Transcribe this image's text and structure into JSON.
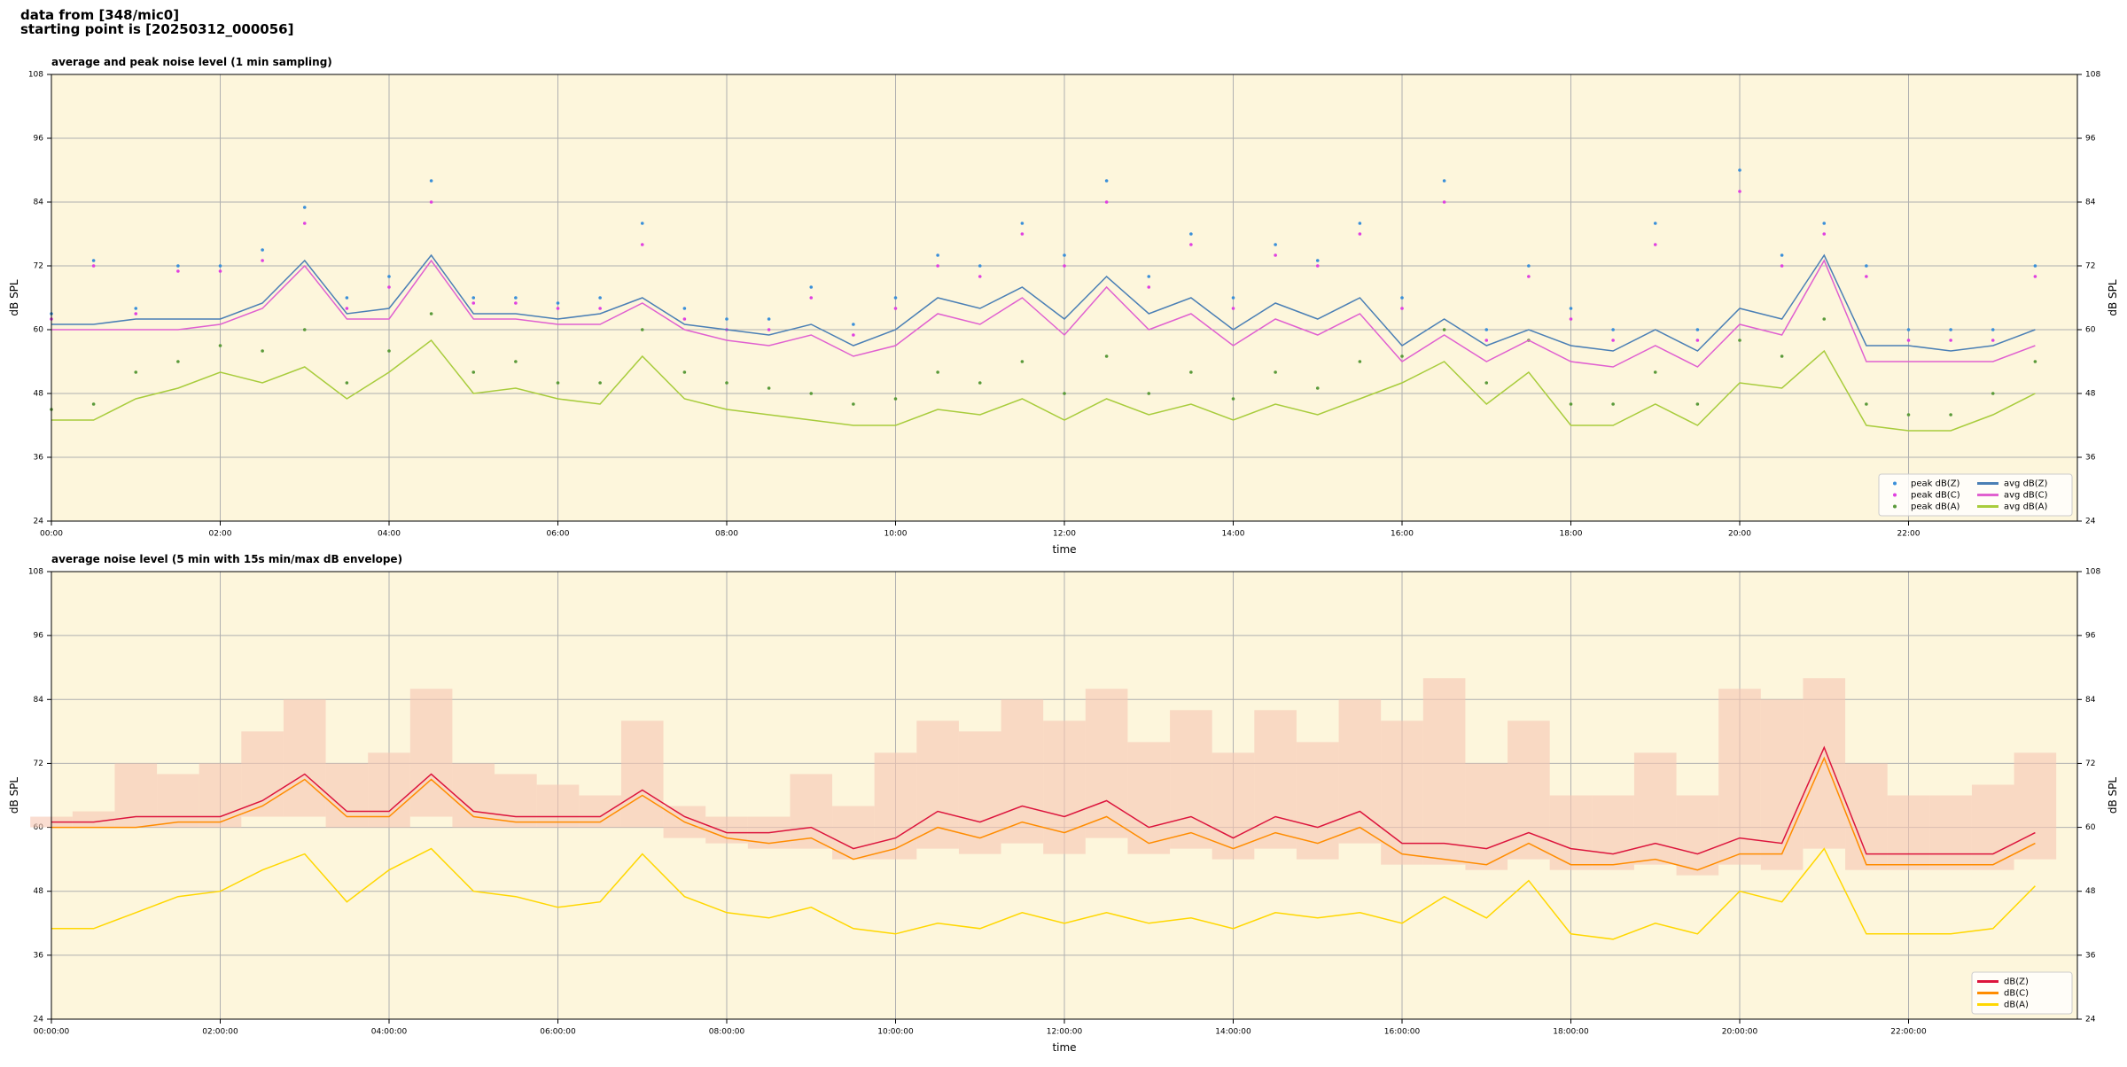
{
  "page": {
    "lines": [
      "data from [348/mic0]",
      "starting point is [20250312_000056]"
    ]
  },
  "chart_data": [
    {
      "type": "line",
      "title": "average and peak noise level (1 min sampling)",
      "xlabel": "time",
      "ylabel": "dB SPL",
      "x": [
        "00:00",
        "00:30",
        "01:00",
        "01:30",
        "02:00",
        "02:30",
        "03:00",
        "03:30",
        "04:00",
        "04:30",
        "05:00",
        "05:30",
        "06:00",
        "06:30",
        "07:00",
        "07:30",
        "08:00",
        "08:30",
        "09:00",
        "09:30",
        "10:00",
        "10:30",
        "11:00",
        "11:30",
        "12:00",
        "12:30",
        "13:00",
        "13:30",
        "14:00",
        "14:30",
        "15:00",
        "15:30",
        "16:00",
        "16:30",
        "17:00",
        "17:30",
        "18:00",
        "18:30",
        "19:00",
        "19:30",
        "20:00",
        "20:30",
        "21:00",
        "21:30",
        "22:00",
        "22:30",
        "23:00",
        "23:30"
      ],
      "xlim": [
        "00:00",
        "24:00"
      ],
      "xticks": [
        "00:00",
        "02:00",
        "04:00",
        "06:00",
        "08:00",
        "10:00",
        "12:00",
        "14:00",
        "16:00",
        "18:00",
        "20:00",
        "22:00"
      ],
      "ylim": [
        24,
        108
      ],
      "yticks": [
        24,
        36,
        48,
        60,
        72,
        84,
        96,
        108
      ],
      "grid": true,
      "background": "#fdf6dc",
      "legend": "lower right",
      "legend_columns": 2,
      "series": [
        {
          "name": "peak dB(Z)",
          "type": "scatter",
          "color": "#3a8fd9",
          "values": [
            63,
            73,
            64,
            72,
            72,
            75,
            83,
            66,
            70,
            88,
            66,
            66,
            65,
            66,
            80,
            64,
            62,
            62,
            68,
            61,
            66,
            74,
            72,
            80,
            74,
            88,
            70,
            78,
            66,
            76,
            73,
            80,
            66,
            88,
            60,
            72,
            64,
            60,
            80,
            60,
            90,
            74,
            80,
            72,
            60,
            60,
            60,
            72
          ]
        },
        {
          "name": "peak dB(C)",
          "type": "scatter",
          "color": "#e040e0",
          "values": [
            62,
            72,
            63,
            71,
            71,
            73,
            80,
            64,
            68,
            84,
            65,
            65,
            64,
            64,
            76,
            62,
            60,
            60,
            66,
            59,
            64,
            72,
            70,
            78,
            72,
            84,
            68,
            76,
            64,
            74,
            72,
            78,
            64,
            84,
            58,
            70,
            62,
            58,
            76,
            58,
            86,
            72,
            78,
            70,
            58,
            58,
            58,
            70
          ]
        },
        {
          "name": "peak dB(A)",
          "type": "scatter",
          "color": "#5a9a3a",
          "values": [
            45,
            46,
            52,
            54,
            57,
            56,
            60,
            50,
            56,
            63,
            52,
            54,
            50,
            50,
            60,
            52,
            50,
            49,
            48,
            46,
            47,
            52,
            50,
            54,
            48,
            55,
            48,
            52,
            47,
            52,
            49,
            54,
            55,
            60,
            50,
            58,
            46,
            46,
            52,
            46,
            58,
            55,
            62,
            46,
            44,
            44,
            48,
            54
          ]
        },
        {
          "name": "avg dB(Z)",
          "type": "line",
          "color": "#4a7fb5",
          "values": [
            61,
            61,
            62,
            62,
            62,
            65,
            73,
            63,
            64,
            74,
            63,
            63,
            62,
            63,
            66,
            61,
            60,
            59,
            61,
            57,
            60,
            66,
            64,
            68,
            62,
            70,
            63,
            66,
            60,
            65,
            62,
            66,
            57,
            62,
            57,
            60,
            57,
            56,
            60,
            56,
            64,
            62,
            74,
            57,
            57,
            56,
            57,
            60
          ]
        },
        {
          "name": "avg dB(C)",
          "type": "line",
          "color": "#e060d0",
          "values": [
            60,
            60,
            60,
            60,
            61,
            64,
            72,
            62,
            62,
            73,
            62,
            62,
            61,
            61,
            65,
            60,
            58,
            57,
            59,
            55,
            57,
            63,
            61,
            66,
            59,
            68,
            60,
            63,
            57,
            62,
            59,
            63,
            54,
            59,
            54,
            58,
            54,
            53,
            57,
            53,
            61,
            59,
            73,
            54,
            54,
            54,
            54,
            57
          ]
        },
        {
          "name": "avg dB(A)",
          "type": "line",
          "color": "#a8cc3c",
          "values": [
            43,
            43,
            47,
            49,
            52,
            50,
            53,
            47,
            52,
            58,
            48,
            49,
            47,
            46,
            55,
            47,
            45,
            44,
            43,
            42,
            42,
            45,
            44,
            47,
            43,
            47,
            44,
            46,
            43,
            46,
            44,
            47,
            50,
            54,
            46,
            52,
            42,
            42,
            46,
            42,
            50,
            49,
            56,
            42,
            41,
            41,
            44,
            48
          ]
        }
      ]
    },
    {
      "type": "line",
      "title": "average noise level (5 min with 15s min/max dB envelope)",
      "xlabel": "time",
      "ylabel": "dB SPL",
      "x": [
        "00:00:00",
        "00:30:00",
        "01:00:00",
        "01:30:00",
        "02:00:00",
        "02:30:00",
        "03:00:00",
        "03:30:00",
        "04:00:00",
        "04:30:00",
        "05:00:00",
        "05:30:00",
        "06:00:00",
        "06:30:00",
        "07:00:00",
        "07:30:00",
        "08:00:00",
        "08:30:00",
        "09:00:00",
        "09:30:00",
        "10:00:00",
        "10:30:00",
        "11:00:00",
        "11:30:00",
        "12:00:00",
        "12:30:00",
        "13:00:00",
        "13:30:00",
        "14:00:00",
        "14:30:00",
        "15:00:00",
        "15:30:00",
        "16:00:00",
        "16:30:00",
        "17:00:00",
        "17:30:00",
        "18:00:00",
        "18:30:00",
        "19:00:00",
        "19:30:00",
        "20:00:00",
        "20:30:00",
        "21:00:00",
        "21:30:00",
        "22:00:00",
        "22:30:00",
        "23:00:00",
        "23:30:00"
      ],
      "xlim": [
        "00:00:00",
        "24:00:00"
      ],
      "xticks": [
        "00:00:00",
        "02:00:00",
        "04:00:00",
        "06:00:00",
        "08:00:00",
        "10:00:00",
        "12:00:00",
        "14:00:00",
        "16:00:00",
        "18:00:00",
        "20:00:00",
        "22:00:00"
      ],
      "ylim": [
        24,
        108
      ],
      "yticks": [
        24,
        36,
        48,
        60,
        72,
        84,
        96,
        108
      ],
      "grid": true,
      "background": "#fdf6dc",
      "legend": "lower right",
      "legend_columns": 1,
      "envelope": {
        "color": "#f6c6b2",
        "high": [
          62,
          63,
          72,
          70,
          72,
          78,
          84,
          72,
          74,
          86,
          72,
          70,
          68,
          66,
          80,
          64,
          62,
          62,
          70,
          64,
          74,
          80,
          78,
          84,
          80,
          86,
          76,
          82,
          74,
          82,
          76,
          84,
          80,
          88,
          72,
          80,
          66,
          66,
          74,
          66,
          86,
          84,
          88,
          72,
          66,
          66,
          68,
          74
        ],
        "low": [
          60,
          60,
          60,
          60,
          60,
          62,
          62,
          60,
          60,
          62,
          60,
          60,
          60,
          60,
          60,
          58,
          57,
          56,
          56,
          54,
          54,
          56,
          55,
          57,
          55,
          58,
          55,
          56,
          54,
          56,
          54,
          57,
          53,
          53,
          52,
          54,
          52,
          52,
          53,
          51,
          53,
          52,
          56,
          52,
          52,
          52,
          52,
          54
        ]
      },
      "series": [
        {
          "name": "dB(Z)",
          "type": "line",
          "color": "#dc143c",
          "values": [
            61,
            61,
            62,
            62,
            62,
            65,
            70,
            63,
            63,
            70,
            63,
            62,
            62,
            62,
            67,
            62,
            59,
            59,
            60,
            56,
            58,
            63,
            61,
            64,
            62,
            65,
            60,
            62,
            58,
            62,
            60,
            63,
            57,
            57,
            56,
            59,
            56,
            55,
            57,
            55,
            58,
            57,
            75,
            55,
            55,
            55,
            55,
            59
          ]
        },
        {
          "name": "dB(C)",
          "type": "line",
          "color": "#ff8c00",
          "values": [
            60,
            60,
            60,
            61,
            61,
            64,
            69,
            62,
            62,
            69,
            62,
            61,
            61,
            61,
            66,
            61,
            58,
            57,
            58,
            54,
            56,
            60,
            58,
            61,
            59,
            62,
            57,
            59,
            56,
            59,
            57,
            60,
            55,
            54,
            53,
            57,
            53,
            53,
            54,
            52,
            55,
            55,
            73,
            53,
            53,
            53,
            53,
            57
          ]
        },
        {
          "name": "dB(A)",
          "type": "line",
          "color": "#ffd700",
          "values": [
            41,
            41,
            44,
            47,
            48,
            52,
            55,
            46,
            52,
            56,
            48,
            47,
            45,
            46,
            55,
            47,
            44,
            43,
            45,
            41,
            40,
            42,
            41,
            44,
            42,
            44,
            42,
            43,
            41,
            44,
            43,
            44,
            42,
            47,
            43,
            50,
            40,
            39,
            42,
            40,
            48,
            46,
            56,
            40,
            40,
            40,
            41,
            49
          ]
        }
      ]
    }
  ]
}
